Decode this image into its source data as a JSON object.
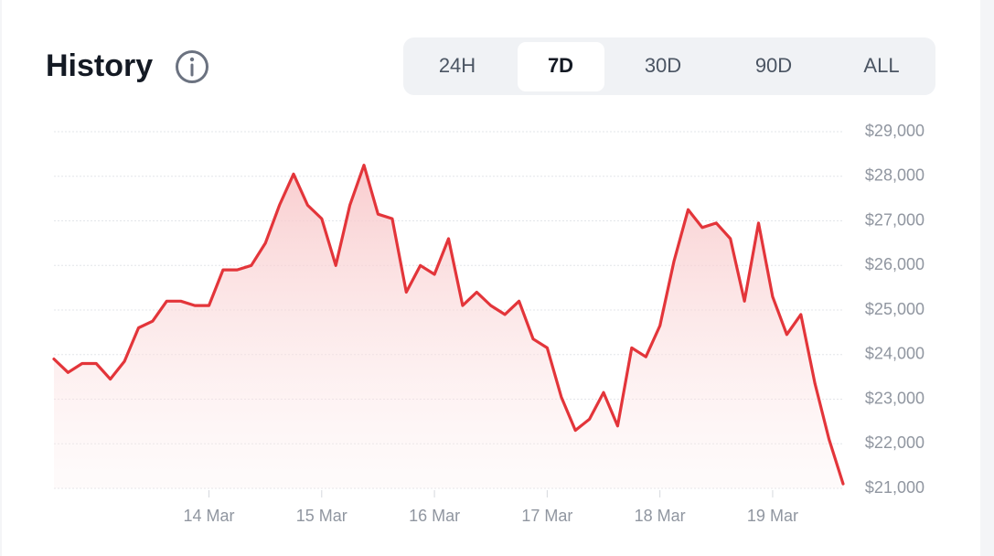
{
  "header": {
    "title": "History",
    "tabs": [
      {
        "label": "24H",
        "selected": false
      },
      {
        "label": "7D",
        "selected": true
      },
      {
        "label": "30D",
        "selected": false
      },
      {
        "label": "90D",
        "selected": false
      },
      {
        "label": "ALL",
        "selected": false
      }
    ]
  },
  "chart_data": {
    "type": "line",
    "color": "#e3353a",
    "categories": [
      null,
      null,
      null,
      null,
      null,
      null,
      null,
      null,
      null,
      null,
      null,
      "14 Mar",
      null,
      null,
      null,
      null,
      null,
      null,
      null,
      "15 Mar",
      null,
      null,
      null,
      null,
      null,
      null,
      null,
      "16 Mar",
      null,
      null,
      null,
      null,
      null,
      null,
      null,
      "17 Mar",
      null,
      null,
      null,
      null,
      null,
      null,
      null,
      "18 Mar",
      null,
      null,
      null,
      null,
      null,
      null,
      null,
      "19 Mar",
      null,
      null,
      null,
      null,
      null
    ],
    "values": [
      23900,
      23600,
      23800,
      23800,
      23450,
      23850,
      24600,
      24750,
      25200,
      25200,
      25100,
      25100,
      25900,
      25900,
      26000,
      26500,
      27350,
      28050,
      27350,
      27050,
      26000,
      27350,
      28250,
      27150,
      27050,
      25400,
      26000,
      25800,
      26600,
      25100,
      25400,
      25100,
      24900,
      25200,
      24350,
      24150,
      23050,
      22300,
      22550,
      23150,
      22400,
      24150,
      23950,
      24650,
      26100,
      27250,
      26850,
      26950,
      26600,
      25200,
      26950,
      25300,
      24450,
      24900,
      23350,
      22100,
      21100
    ],
    "ylim": [
      21000,
      29000
    ],
    "yticks": [
      {
        "value": 21000,
        "label": "$21,000"
      },
      {
        "value": 22000,
        "label": "$22,000"
      },
      {
        "value": 23000,
        "label": "$23,000"
      },
      {
        "value": 24000,
        "label": "$24,000"
      },
      {
        "value": 25000,
        "label": "$25,000"
      },
      {
        "value": 26000,
        "label": "$26,000"
      },
      {
        "value": 27000,
        "label": "$27,000"
      },
      {
        "value": 28000,
        "label": "$28,000"
      },
      {
        "value": 29000,
        "label": "$29,000"
      }
    ],
    "grid": true
  }
}
